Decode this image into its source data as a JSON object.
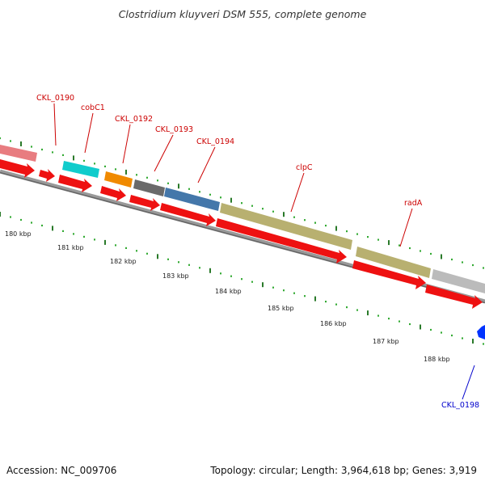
{
  "title": "Clostridium kluyveri DSM 555, complete genome",
  "footer": {
    "accession": "Accession: NC_009706",
    "summary": "Topology: circular; Length: 3,964,618 bp; Genes: 3,919"
  },
  "colors": {
    "cds_forward": "#ee1111",
    "label_red": "#cc0000",
    "label_blue": "#0000cc",
    "blue_feature": "#0033ff",
    "backbone": "#777777",
    "tick_major": "#2a7a2a",
    "tick_minor": "#33aa33",
    "feature_pink": "#e87c80",
    "feature_cyan": "#11cccc",
    "feature_orange": "#f08a00",
    "feature_gray": "#6a6a6a",
    "feature_steelblue": "#4477aa",
    "feature_khaki": "#b8b070",
    "feature_lightgray": "#bbbbbb"
  },
  "kbp_labels": [
    "180 kbp",
    "181 kbp",
    "182 kbp",
    "183 kbp",
    "184 kbp",
    "185 kbp",
    "186 kbp",
    "187 kbp",
    "188 kbp"
  ],
  "gene_labels": [
    {
      "text": "CKL_0190",
      "color_key": "label_red"
    },
    {
      "text": "cobC1",
      "color_key": "label_red"
    },
    {
      "text": "CKL_0192",
      "color_key": "label_red"
    },
    {
      "text": "CKL_0193",
      "color_key": "label_red"
    },
    {
      "text": "CKL_0194",
      "color_key": "label_red"
    },
    {
      "text": "clpC",
      "color_key": "label_red"
    },
    {
      "text": "radA",
      "color_key": "label_red"
    },
    {
      "text": "CKL_0198",
      "color_key": "label_blue"
    }
  ]
}
